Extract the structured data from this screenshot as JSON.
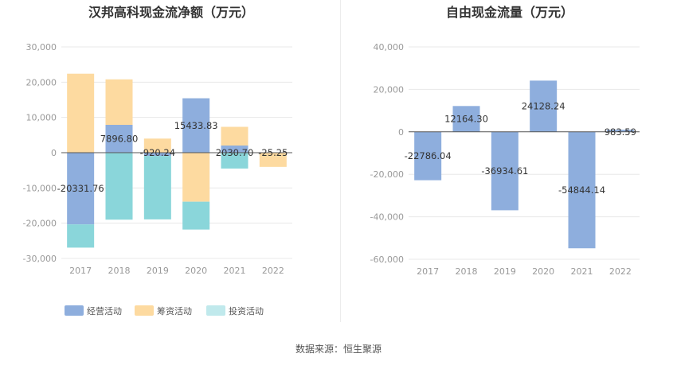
{
  "source": "数据来源：恒生聚源",
  "colors": {
    "operating": "#8eaedd",
    "financing": "#fddaa0",
    "investing": "#8ad6da",
    "legend_investing": "#c0e9ec",
    "grid": "#e8e8e8",
    "axis": "#555555"
  },
  "chart_data": [
    {
      "type": "bar",
      "stacked": true,
      "title": "汉邦高科现金流净额（万元）",
      "categories": [
        "2017",
        "2018",
        "2019",
        "2020",
        "2021",
        "2022"
      ],
      "ylim": [
        -30000,
        30000
      ],
      "yticks": [
        30000,
        20000,
        10000,
        0,
        -10000,
        -20000,
        -30000
      ],
      "ytick_labels": [
        "30,000",
        "20,000",
        "10,000",
        "0",
        "-10,000",
        "-20,000",
        "-30,000"
      ],
      "grid": true,
      "legend_position": "bottom-left",
      "series": [
        {
          "name": "经营活动",
          "color_key": "operating",
          "values": [
            -20331.76,
            7896.8,
            -920.24,
            15433.83,
            2030.7,
            -25.25
          ]
        },
        {
          "name": "筹资活动",
          "color_key": "financing",
          "values": [
            22400,
            12900,
            4000,
            -13900,
            5300,
            -4000
          ]
        },
        {
          "name": "投资活动",
          "color_key": "investing",
          "values": [
            -6600,
            -19000,
            -18000,
            -7900,
            -4500,
            0
          ]
        }
      ],
      "data_labels": [
        "-20331.76",
        "7896.80",
        "-920.24",
        "15433.83",
        "2030.70",
        "-25.25"
      ]
    },
    {
      "type": "bar",
      "title": "自由现金流量（万元）",
      "categories": [
        "2017",
        "2018",
        "2019",
        "2020",
        "2021",
        "2022"
      ],
      "ylim": [
        -60000,
        40000
      ],
      "yticks": [
        40000,
        20000,
        0,
        -20000,
        -40000,
        -60000
      ],
      "ytick_labels": [
        "40,000",
        "20,000",
        "0",
        "-20,000",
        "-40,000",
        "-60,000"
      ],
      "grid": true,
      "series": [
        {
          "name": "",
          "color_key": "operating",
          "values": [
            -22786.04,
            12164.3,
            -36934.61,
            24128.24,
            -54844.14,
            983.59
          ]
        }
      ],
      "data_labels": [
        "-22786.04",
        "12164.30",
        "-36934.61",
        "24128.24",
        "-54844.14",
        "983.59"
      ]
    }
  ]
}
